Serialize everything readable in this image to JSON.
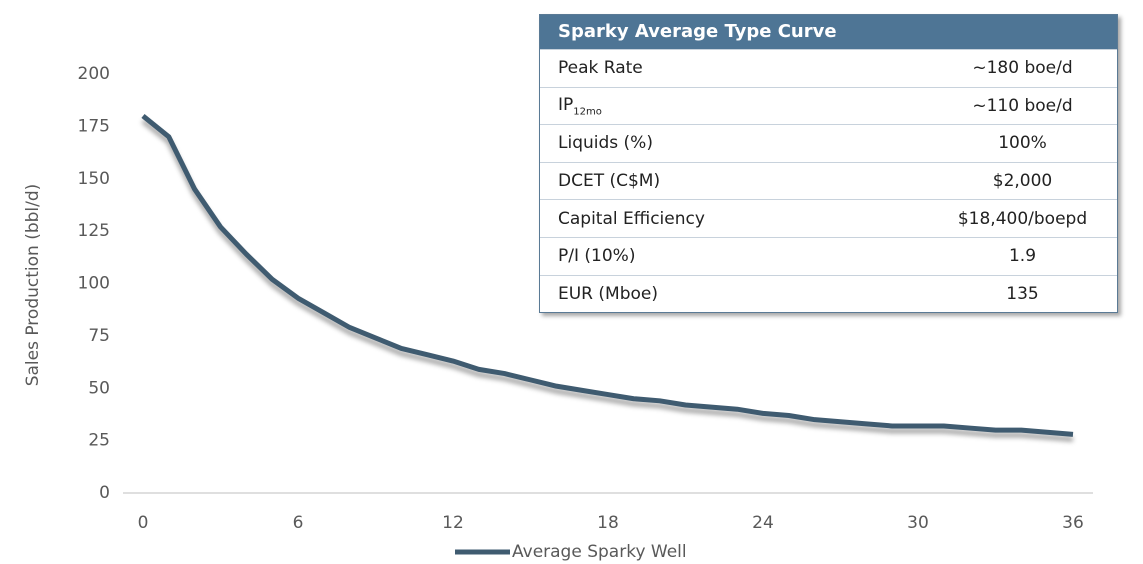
{
  "chart_data": {
    "type": "line",
    "x": [
      0,
      1,
      2,
      3,
      4,
      5,
      6,
      7,
      8,
      9,
      10,
      11,
      12,
      13,
      14,
      15,
      16,
      17,
      18,
      19,
      20,
      21,
      22,
      23,
      24,
      25,
      26,
      27,
      28,
      29,
      30,
      31,
      32,
      33,
      34,
      35,
      36
    ],
    "series": [
      {
        "name": "Average Sparky Well",
        "color": "#3f5b70",
        "values": [
          180,
          170,
          145,
          127,
          114,
          102,
          93,
          86,
          79,
          74,
          69,
          66,
          63,
          59,
          57,
          54,
          51,
          49,
          47,
          45,
          44,
          42,
          41,
          40,
          38,
          37,
          35,
          34,
          33,
          32,
          32,
          32,
          31,
          30,
          30,
          29,
          28
        ]
      }
    ],
    "xlim": [
      0,
      36
    ],
    "xticks": [
      0,
      6,
      12,
      18,
      24,
      30,
      36
    ],
    "ylim": [
      0,
      200
    ],
    "yticks": [
      0,
      25,
      50,
      75,
      100,
      125,
      150,
      175,
      200
    ],
    "y_label": "Sales Production (bbl/d)",
    "grid": false,
    "legend": "bottom"
  },
  "table": {
    "title": "Sparky Average Type Curve",
    "rows": [
      {
        "label": "Peak Rate",
        "value": "~180 boe/d"
      },
      {
        "label": "IP",
        "sub": "12mo",
        "value": "~110 boe/d"
      },
      {
        "label": "Liquids (%)",
        "value": "100%"
      },
      {
        "label": "DCET (C$M)",
        "value": "$2,000"
      },
      {
        "label": "Capital Efficiency",
        "value": "$18,400/boepd"
      },
      {
        "label": "P/I (10%)",
        "value": "1.9"
      },
      {
        "label": "EUR (Mboe)",
        "value": "135"
      }
    ]
  }
}
